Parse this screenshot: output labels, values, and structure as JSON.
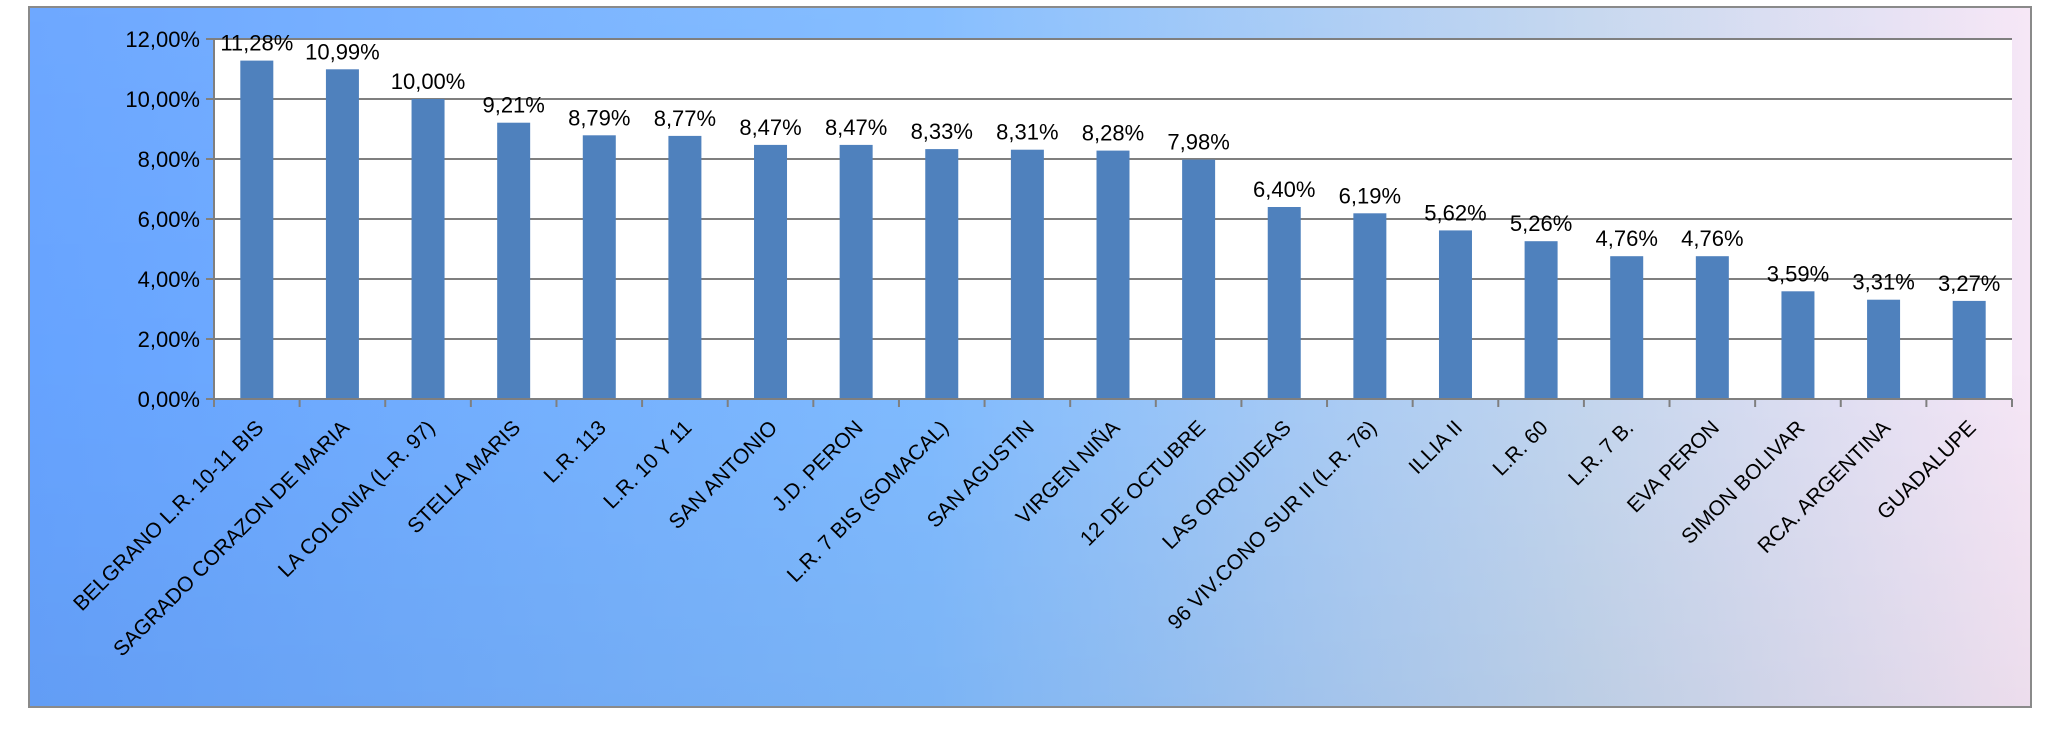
{
  "chart_data": {
    "type": "bar",
    "categories": [
      "BELGRANO L.R. 10-11 BIS",
      "SAGRADO CORAZON DE MARIA",
      "LA COLONIA (L.R. 97)",
      "STELLA MARIS",
      "L.R. 113",
      "L.R. 10 Y 11",
      "SAN ANTONIO",
      "J.D. PERON",
      "L.R. 7 BIS (SOMACAL)",
      "SAN AGUSTIN",
      "VIRGEN NIÑA",
      "12 DE OCTUBRE",
      "LAS ORQUIDEAS",
      "96 VIV.CONO SUR II (L.R. 76)",
      "ILLIA II",
      "L.R. 60",
      "L.R. 7 B.",
      "EVA PERON",
      "SIMON BOLIVAR",
      "RCA. ARGENTINA",
      "GUADALUPE"
    ],
    "values": [
      11.28,
      10.99,
      10.0,
      9.21,
      8.79,
      8.77,
      8.47,
      8.47,
      8.33,
      8.31,
      8.28,
      7.98,
      6.4,
      6.19,
      5.62,
      5.26,
      4.76,
      4.76,
      3.59,
      3.31,
      3.27
    ],
    "data_labels": [
      "11,28%",
      "10,99%",
      "10,00%",
      "9,21%",
      "8,79%",
      "8,77%",
      "8,47%",
      "8,47%",
      "8,33%",
      "8,31%",
      "8,28%",
      "7,98%",
      "6,40%",
      "6,19%",
      "5,62%",
      "5,26%",
      "4,76%",
      "4,76%",
      "3,59%",
      "3,31%",
      "3,27%"
    ],
    "y_ticks": [
      0,
      2,
      4,
      6,
      8,
      10,
      12
    ],
    "y_tick_labels": [
      "0,00%",
      "2,00%",
      "4,00%",
      "6,00%",
      "8,00%",
      "10,00%",
      "12,00%"
    ],
    "ylim": [
      0,
      12
    ],
    "grid": true,
    "legend": false,
    "title": "",
    "xlabel": "",
    "ylabel": "",
    "colors": {
      "bar": "#4f81bd",
      "grid": "#7f7f7f",
      "plot_background": "#ffffff"
    }
  }
}
